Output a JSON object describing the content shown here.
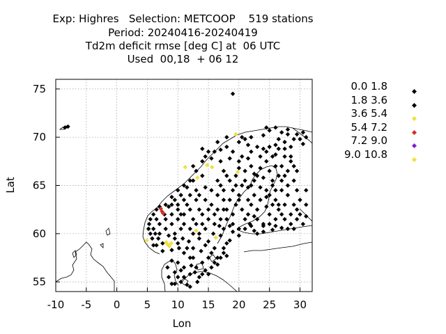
{
  "title": {
    "line1": "Exp: Highres   Selection: METCOOP    519 stations",
    "line2": "Period: 20240416-20240419",
    "line3": "Td2m deficit rmse [deg C] at  06 UTC",
    "line4": "Used  00,18  + 06 12"
  },
  "chart_data": {
    "type": "scatter",
    "xlabel": "Lon",
    "ylabel": "Lat",
    "xlim": [
      -10,
      32
    ],
    "ylim": [
      54,
      76
    ],
    "xticks": [
      -10,
      -5,
      0,
      5,
      10,
      15,
      20,
      25,
      30
    ],
    "yticks": [
      55,
      60,
      65,
      70,
      75
    ],
    "grid": true,
    "legend_placement": "right",
    "legend": [
      {
        "label": "0.0 1.8",
        "color": "#000000"
      },
      {
        "label": "1.8 3.6",
        "color": "#000000"
      },
      {
        "label": "3.6 5.4",
        "color": "#f0e040"
      },
      {
        "label": "5.4 7.2",
        "color": "#d03020"
      },
      {
        "label": "7.2 9.0",
        "color": "#8020d0"
      },
      {
        "label": "9.0 10.8",
        "color": "#f0e040"
      }
    ],
    "series": [
      {
        "name": "3.6 5.4",
        "color": "#f0e040",
        "points": [
          [
            4.9,
            59.3
          ],
          [
            8.3,
            58.9
          ],
          [
            8.6,
            58.7
          ],
          [
            8.9,
            59.0
          ],
          [
            8.1,
            59.1
          ],
          [
            11.2,
            66.9
          ],
          [
            13.2,
            65.8
          ],
          [
            14.8,
            67.1
          ],
          [
            15.6,
            66.9
          ],
          [
            19.5,
            70.3
          ],
          [
            19.8,
            66.4
          ],
          [
            13.0,
            60.3
          ],
          [
            16.2,
            59.6
          ]
        ]
      },
      {
        "name": "5.4 7.2",
        "color": "#d03020",
        "points": [
          [
            7.4,
            62.3
          ],
          [
            7.6,
            62.1
          ],
          [
            7.2,
            62.6
          ]
        ]
      },
      {
        "name": "0.0 1.8",
        "color": "#000000",
        "points": [
          [
            19.0,
            74.5
          ],
          [
            -8.5,
            71.0
          ],
          [
            -8.0,
            71.1
          ],
          [
            27.5,
            69.5
          ],
          [
            25.0,
            70.7
          ],
          [
            28.0,
            70.3
          ],
          [
            29.0,
            69.8
          ],
          [
            30.5,
            69.3
          ],
          [
            26.5,
            68.8
          ],
          [
            23.0,
            69.0
          ],
          [
            20.0,
            69.5
          ],
          [
            18.0,
            69.0
          ],
          [
            16.0,
            68.5
          ],
          [
            14.5,
            68.0
          ],
          [
            13.0,
            66.5
          ],
          [
            12.5,
            65.5
          ],
          [
            11.5,
            64.8
          ],
          [
            10.5,
            64.0
          ],
          [
            9.5,
            63.5
          ],
          [
            8.0,
            63.0
          ],
          [
            6.5,
            62.5
          ],
          [
            5.5,
            61.5
          ],
          [
            5.2,
            60.5
          ],
          [
            5.8,
            59.5
          ],
          [
            6.5,
            58.8
          ],
          [
            7.5,
            58.2
          ],
          [
            9.0,
            58.3
          ],
          [
            10.0,
            59.0
          ],
          [
            10.8,
            59.5
          ],
          [
            11.5,
            58.5
          ],
          [
            12.5,
            57.5
          ],
          [
            13.0,
            56.5
          ],
          [
            14.0,
            55.8
          ],
          [
            15.5,
            56.5
          ],
          [
            16.5,
            57.5
          ],
          [
            17.5,
            58.5
          ],
          [
            18.5,
            59.3
          ],
          [
            17.5,
            60.5
          ],
          [
            17.0,
            61.5
          ],
          [
            17.5,
            62.5
          ],
          [
            18.5,
            63.5
          ],
          [
            20.0,
            64.0
          ],
          [
            21.5,
            64.8
          ],
          [
            22.5,
            65.5
          ],
          [
            24.0,
            65.8
          ],
          [
            25.5,
            65.0
          ],
          [
            25.0,
            64.0
          ],
          [
            23.5,
            63.5
          ],
          [
            22.0,
            63.0
          ],
          [
            21.5,
            62.0
          ],
          [
            21.8,
            61.0
          ],
          [
            22.5,
            60.3
          ],
          [
            24.0,
            60.2
          ],
          [
            25.5,
            60.4
          ],
          [
            27.0,
            60.6
          ],
          [
            28.5,
            61.0
          ],
          [
            29.5,
            62.5
          ],
          [
            30.0,
            63.5
          ],
          [
            29.5,
            64.5
          ],
          [
            29.0,
            65.5
          ],
          [
            29.5,
            66.5
          ],
          [
            28.5,
            67.5
          ],
          [
            27.5,
            68.0
          ],
          [
            26.0,
            68.2
          ],
          [
            24.5,
            67.5
          ],
          [
            23.5,
            66.8
          ],
          [
            21.0,
            66.5
          ],
          [
            20.0,
            67.5
          ],
          [
            18.5,
            67.8
          ],
          [
            17.5,
            66.5
          ],
          [
            16.5,
            65.5
          ],
          [
            15.5,
            64.5
          ],
          [
            14.5,
            63.5
          ],
          [
            13.5,
            62.5
          ],
          [
            12.5,
            61.5
          ],
          [
            12.0,
            60.5
          ],
          [
            13.5,
            59.5
          ],
          [
            14.5,
            58.8
          ],
          [
            15.5,
            58.0
          ],
          [
            14.0,
            57.0
          ],
          [
            12.8,
            56.0
          ],
          [
            13.5,
            55.5
          ],
          [
            12.0,
            55.8
          ],
          [
            11.0,
            56.5
          ],
          [
            10.0,
            57.0
          ],
          [
            9.5,
            56.0
          ],
          [
            8.5,
            55.5
          ],
          [
            9.0,
            54.8
          ],
          [
            10.5,
            55.0
          ],
          [
            11.5,
            54.7
          ],
          [
            25.0,
            62.0
          ],
          [
            26.5,
            62.5
          ],
          [
            27.5,
            63.0
          ],
          [
            26.0,
            63.5
          ],
          [
            27.0,
            64.5
          ],
          [
            26.5,
            66.0
          ],
          [
            28.0,
            66.5
          ],
          [
            24.0,
            61.0
          ],
          [
            23.0,
            61.5
          ],
          [
            20.5,
            62.5
          ],
          [
            19.5,
            63.0
          ],
          [
            16.5,
            62.5
          ],
          [
            15.0,
            61.5
          ],
          [
            14.5,
            60.5
          ],
          [
            15.8,
            60.0
          ],
          [
            16.8,
            60.8
          ],
          [
            18.0,
            61.5
          ],
          [
            19.0,
            62.0
          ],
          [
            15.5,
            63.0
          ],
          [
            14.5,
            64.8
          ],
          [
            17.5,
            64.5
          ],
          [
            18.5,
            65.5
          ],
          [
            19.5,
            66.0
          ],
          [
            21.0,
            65.5
          ],
          [
            20.5,
            68.0
          ],
          [
            22.0,
            68.5
          ],
          [
            23.5,
            68.0
          ],
          [
            25.0,
            69.0
          ],
          [
            26.5,
            69.8
          ],
          [
            29.5,
            70.3
          ],
          [
            31.0,
            70.0
          ],
          [
            27.0,
            70.5
          ],
          [
            24.0,
            70.2
          ],
          [
            22.0,
            70.0
          ],
          [
            21.0,
            69.8
          ],
          [
            17.0,
            68.7
          ],
          [
            15.0,
            68.5
          ],
          [
            14.0,
            67.5
          ],
          [
            12.5,
            67.0
          ],
          [
            11.0,
            65.0
          ],
          [
            10.0,
            64.5
          ],
          [
            9.0,
            63.8
          ],
          [
            8.5,
            62.8
          ],
          [
            7.0,
            62.8
          ],
          [
            6.0,
            62.0
          ],
          [
            5.3,
            61.0
          ],
          [
            6.0,
            60.5
          ],
          [
            7.0,
            60.0
          ],
          [
            8.0,
            60.5
          ],
          [
            9.0,
            61.0
          ],
          [
            10.0,
            61.5
          ],
          [
            11.0,
            62.0
          ],
          [
            11.5,
            63.0
          ],
          [
            10.0,
            62.5
          ],
          [
            9.0,
            62.0
          ],
          [
            8.0,
            61.5
          ],
          [
            7.0,
            61.0
          ],
          [
            6.5,
            61.5
          ],
          [
            8.5,
            59.8
          ],
          [
            9.5,
            60.0
          ],
          [
            10.5,
            60.5
          ],
          [
            11.0,
            61.0
          ],
          [
            10.0,
            63.0
          ],
          [
            12.0,
            64.0
          ],
          [
            13.0,
            64.5
          ],
          [
            12.0,
            62.5
          ],
          [
            13.0,
            63.5
          ],
          [
            14.0,
            62.0
          ],
          [
            16.0,
            61.0
          ],
          [
            17.0,
            59.8
          ],
          [
            16.0,
            58.5
          ],
          [
            17.0,
            57.5
          ],
          [
            18.0,
            57.7
          ],
          [
            16.5,
            56.8
          ],
          [
            15.0,
            57.5
          ],
          [
            13.8,
            58.2
          ],
          [
            12.5,
            58.5
          ],
          [
            12.0,
            57.5
          ],
          [
            13.5,
            60.0
          ],
          [
            19.0,
            60.2
          ],
          [
            20.0,
            63.5
          ],
          [
            22.5,
            64.0
          ],
          [
            23.0,
            62.5
          ],
          [
            24.5,
            62.8
          ],
          [
            25.5,
            63.0
          ],
          [
            26.0,
            61.5
          ],
          [
            27.5,
            61.5
          ],
          [
            28.5,
            62.0
          ],
          [
            29.0,
            63.0
          ],
          [
            28.0,
            64.0
          ],
          [
            27.0,
            65.5
          ],
          [
            25.0,
            66.5
          ],
          [
            22.0,
            67.0
          ],
          [
            23.0,
            66.0
          ],
          [
            21.5,
            67.8
          ],
          [
            24.5,
            68.5
          ],
          [
            26.0,
            69.2
          ],
          [
            28.5,
            69.0
          ],
          [
            30.0,
            69.8
          ],
          [
            29.0,
            67.0
          ],
          [
            28.0,
            65.0
          ],
          [
            30.0,
            62.0
          ],
          [
            31.0,
            63.0
          ],
          [
            28.0,
            60.5
          ],
          [
            26.0,
            60.8
          ],
          [
            23.0,
            60.0
          ],
          [
            22.0,
            60.8
          ],
          [
            20.0,
            60.5
          ],
          [
            18.5,
            60.8
          ],
          [
            7.5,
            59.0
          ],
          [
            6.8,
            59.5
          ],
          [
            6.0,
            58.8
          ],
          [
            9.5,
            59.5
          ],
          [
            10.2,
            58.5
          ],
          [
            11.8,
            59.2
          ],
          [
            11.0,
            58.0
          ],
          [
            12.2,
            56.7
          ],
          [
            10.5,
            56.2
          ],
          [
            9.0,
            57.2
          ],
          [
            8.3,
            56.5
          ],
          [
            14.5,
            56.2
          ],
          [
            15.0,
            59.2
          ],
          [
            16.0,
            62.0
          ],
          [
            17.5,
            63.5
          ],
          [
            16.5,
            64.0
          ],
          [
            19.0,
            64.5
          ],
          [
            20.5,
            65.0
          ],
          [
            18.0,
            62.5
          ],
          [
            21.0,
            61.5
          ],
          [
            19.0,
            61.0
          ],
          [
            22.5,
            61.8
          ],
          [
            24.5,
            63.8
          ],
          [
            23.5,
            64.8
          ],
          [
            26.0,
            64.5
          ],
          [
            27.5,
            66.0
          ],
          [
            26.0,
            67.0
          ],
          [
            24.0,
            68.8
          ],
          [
            27.5,
            68.8
          ],
          [
            25.5,
            68.0
          ],
          [
            21.5,
            69.2
          ],
          [
            19.0,
            68.5
          ],
          [
            18.0,
            70.0
          ],
          [
            16.5,
            69.5
          ],
          [
            14.0,
            68.8
          ],
          [
            20.5,
            70.0
          ],
          [
            28.0,
            70.8
          ],
          [
            30.5,
            70.5
          ],
          [
            26.0,
            71.0
          ],
          [
            24.5,
            71.0
          ],
          [
            9.0,
            63.0
          ],
          [
            7.8,
            62.0
          ],
          [
            6.3,
            60.0
          ],
          [
            5.5,
            60.0
          ],
          [
            10.5,
            62.0
          ],
          [
            12.5,
            60.0
          ],
          [
            13.0,
            61.0
          ],
          [
            14.0,
            61.0
          ],
          [
            15.0,
            62.5
          ],
          [
            13.5,
            64.0
          ],
          [
            11.0,
            63.5
          ],
          [
            12.0,
            65.5
          ],
          [
            14.0,
            66.0
          ],
          [
            15.5,
            67.8
          ],
          [
            17.0,
            67.5
          ],
          [
            18.0,
            66.0
          ],
          [
            17.0,
            65.0
          ],
          [
            19.5,
            65.0
          ],
          [
            21.5,
            63.5
          ],
          [
            22.0,
            65.0
          ],
          [
            24.5,
            64.5
          ],
          [
            25.5,
            65.5
          ],
          [
            26.5,
            63.0
          ],
          [
            27.0,
            62.0
          ],
          [
            25.0,
            61.0
          ],
          [
            24.0,
            60.8
          ],
          [
            21.0,
            60.5
          ],
          [
            20.0,
            59.8
          ],
          [
            18.0,
            59.0
          ],
          [
            17.5,
            58.0
          ],
          [
            16.0,
            57.0
          ],
          [
            15.0,
            55.8
          ],
          [
            13.2,
            55.0
          ],
          [
            11.0,
            55.5
          ],
          [
            10.0,
            55.5
          ],
          [
            9.5,
            54.8
          ],
          [
            12.0,
            54.5
          ],
          [
            27.0,
            67.0
          ],
          [
            28.5,
            68.0
          ],
          [
            22.5,
            66.2
          ],
          [
            20.0,
            66.8
          ],
          [
            29.5,
            61.5
          ],
          [
            30.5,
            61.0
          ],
          [
            29.0,
            60.5
          ],
          [
            31.0,
            61.8
          ],
          [
            31.0,
            64.5
          ]
        ]
      }
    ]
  }
}
